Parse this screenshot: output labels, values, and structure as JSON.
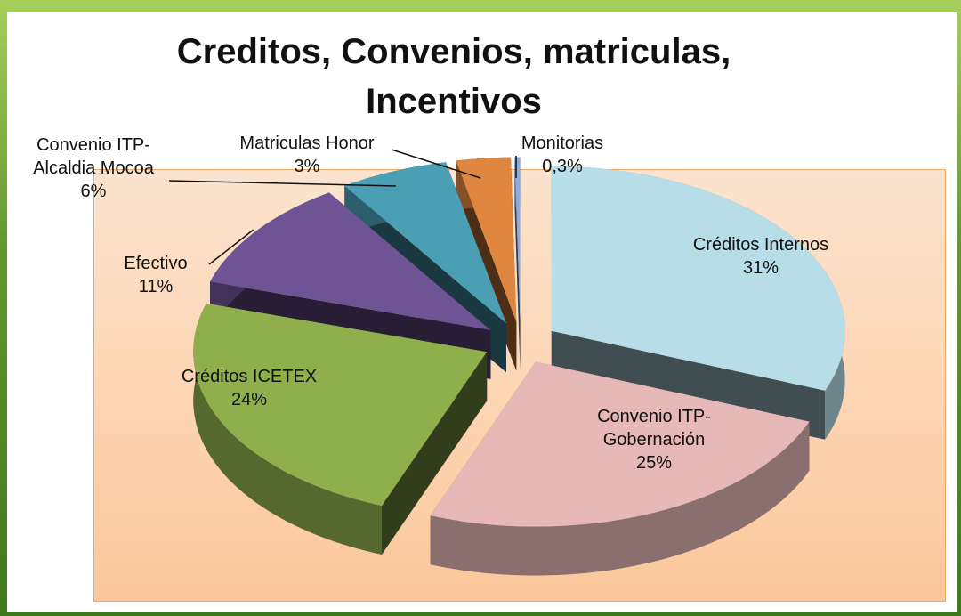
{
  "chart_data": {
    "type": "pie",
    "title": "Creditos, Convenios, matriculas, Incentivos",
    "categories": [
      "Créditos Internos",
      "Convenio ITP-Gobernación",
      "Créditos ICETEX",
      "Efectivo",
      "Convenio ITP-Alcaldia Mocoa",
      "Matriculas Honor",
      "Monitorias"
    ],
    "values": [
      31,
      25,
      24,
      11,
      6,
      3,
      0.3
    ],
    "value_labels": [
      "31%",
      "25%",
      "24%",
      "11%",
      "6%",
      "3%",
      "0,3%"
    ],
    "colors": [
      "#b7dde8",
      "#e6b9b8",
      "#8eaf4c",
      "#6e5494",
      "#4a9fb5",
      "#df8640",
      "#8faadc"
    ],
    "exploded": true,
    "three_d": true
  }
}
